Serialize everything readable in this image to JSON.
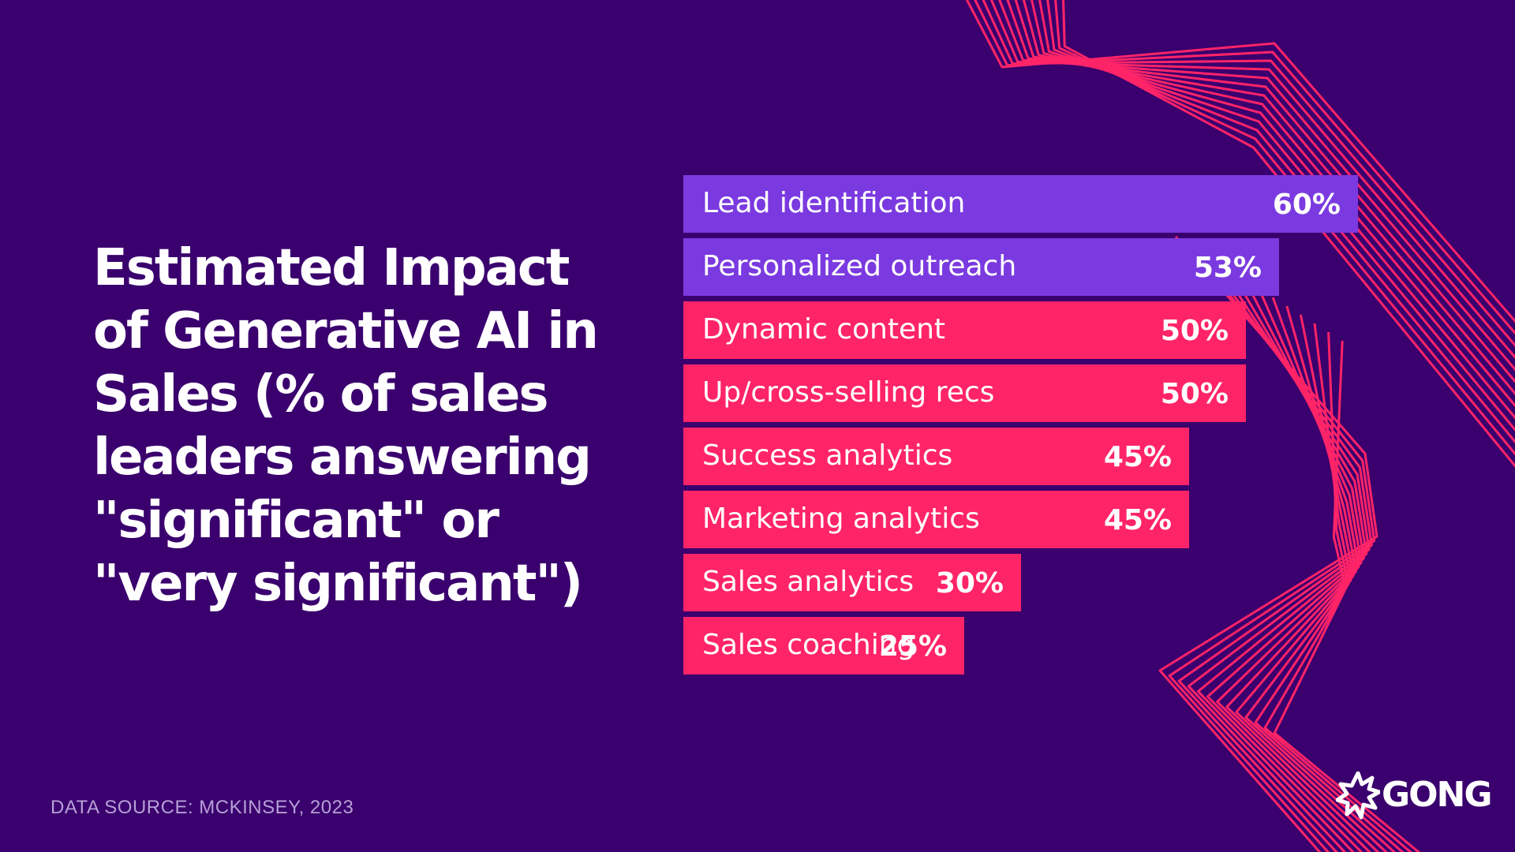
{
  "title": "Estimated Impact of Generative AI in Sales (% of sales leaders answering \"significant\" or \"very significant\")",
  "source": "DATA SOURCE: MCKINSEY, 2023",
  "logo": {
    "text": "GONG",
    "icon": "gong-starburst-icon"
  },
  "colors": {
    "background": "#3a006e",
    "purple_bar": "#7b3ae0",
    "pink_bar": "#ff2468",
    "line": "#ff2468"
  },
  "chart_data": {
    "type": "bar",
    "orientation": "horizontal",
    "categories": [
      "Lead identification",
      "Personalized outreach",
      "Dynamic content",
      "Up/cross-selling recs",
      "Success analytics",
      "Marketing analytics",
      "Sales analytics",
      "Sales coaching"
    ],
    "values": [
      60,
      53,
      50,
      50,
      45,
      45,
      30,
      25
    ],
    "value_labels": [
      "60%",
      "53%",
      "50%",
      "50%",
      "45%",
      "45%",
      "30%",
      "25%"
    ],
    "bar_colors": [
      "#7b3ae0",
      "#7b3ae0",
      "#ff2468",
      "#ff2468",
      "#ff2468",
      "#ff2468",
      "#ff2468",
      "#ff2468"
    ],
    "title": "Estimated Impact of Generative AI in Sales (% of sales leaders answering \"significant\" or \"very significant\")",
    "xlabel": "",
    "ylabel": "",
    "xlim": [
      0,
      60
    ],
    "grid": false,
    "legend": "none"
  }
}
